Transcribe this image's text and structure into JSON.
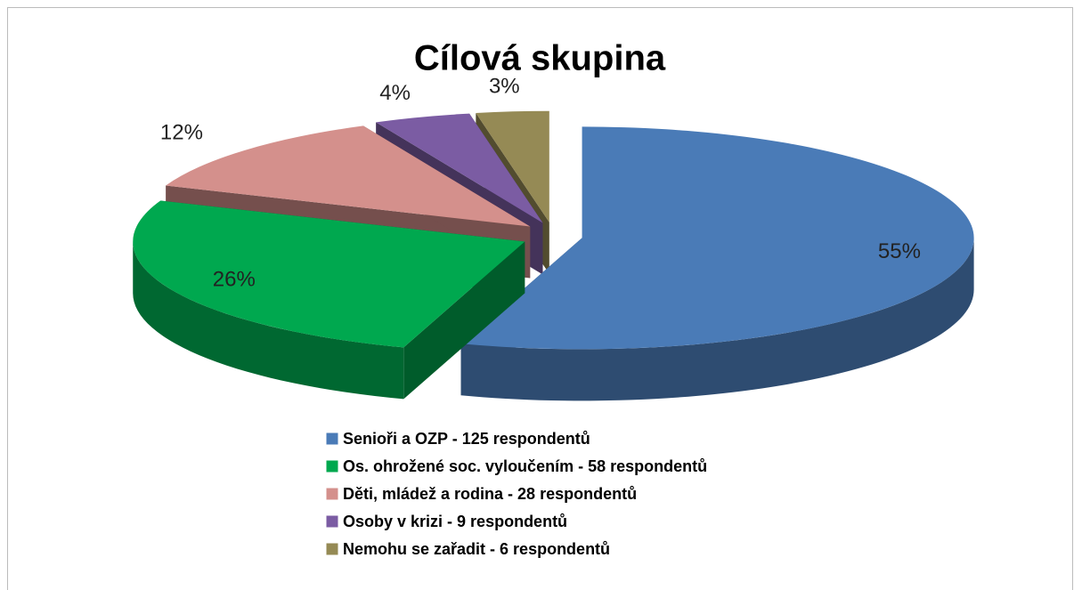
{
  "chart_data": {
    "type": "pie",
    "title": "Cílová skupina",
    "categories": [
      "Senioři a OZP - 125 respondentů",
      "Os. ohrožené soc. vyloučením - 58 respondentů",
      "Děti, mládež a rodina - 28 respondentů",
      "Osoby v krizi - 9 respondentů",
      "Nemohu se zařadit - 6 respondentů"
    ],
    "values": [
      55,
      26,
      12,
      4,
      3
    ],
    "value_labels": [
      "55%",
      "26%",
      "12%",
      "4%",
      "3%"
    ],
    "colors": [
      "#4a7bb7",
      "#00a84f",
      "#d4908c",
      "#7b5ca3",
      "#958a55"
    ],
    "legend": "bottom"
  }
}
